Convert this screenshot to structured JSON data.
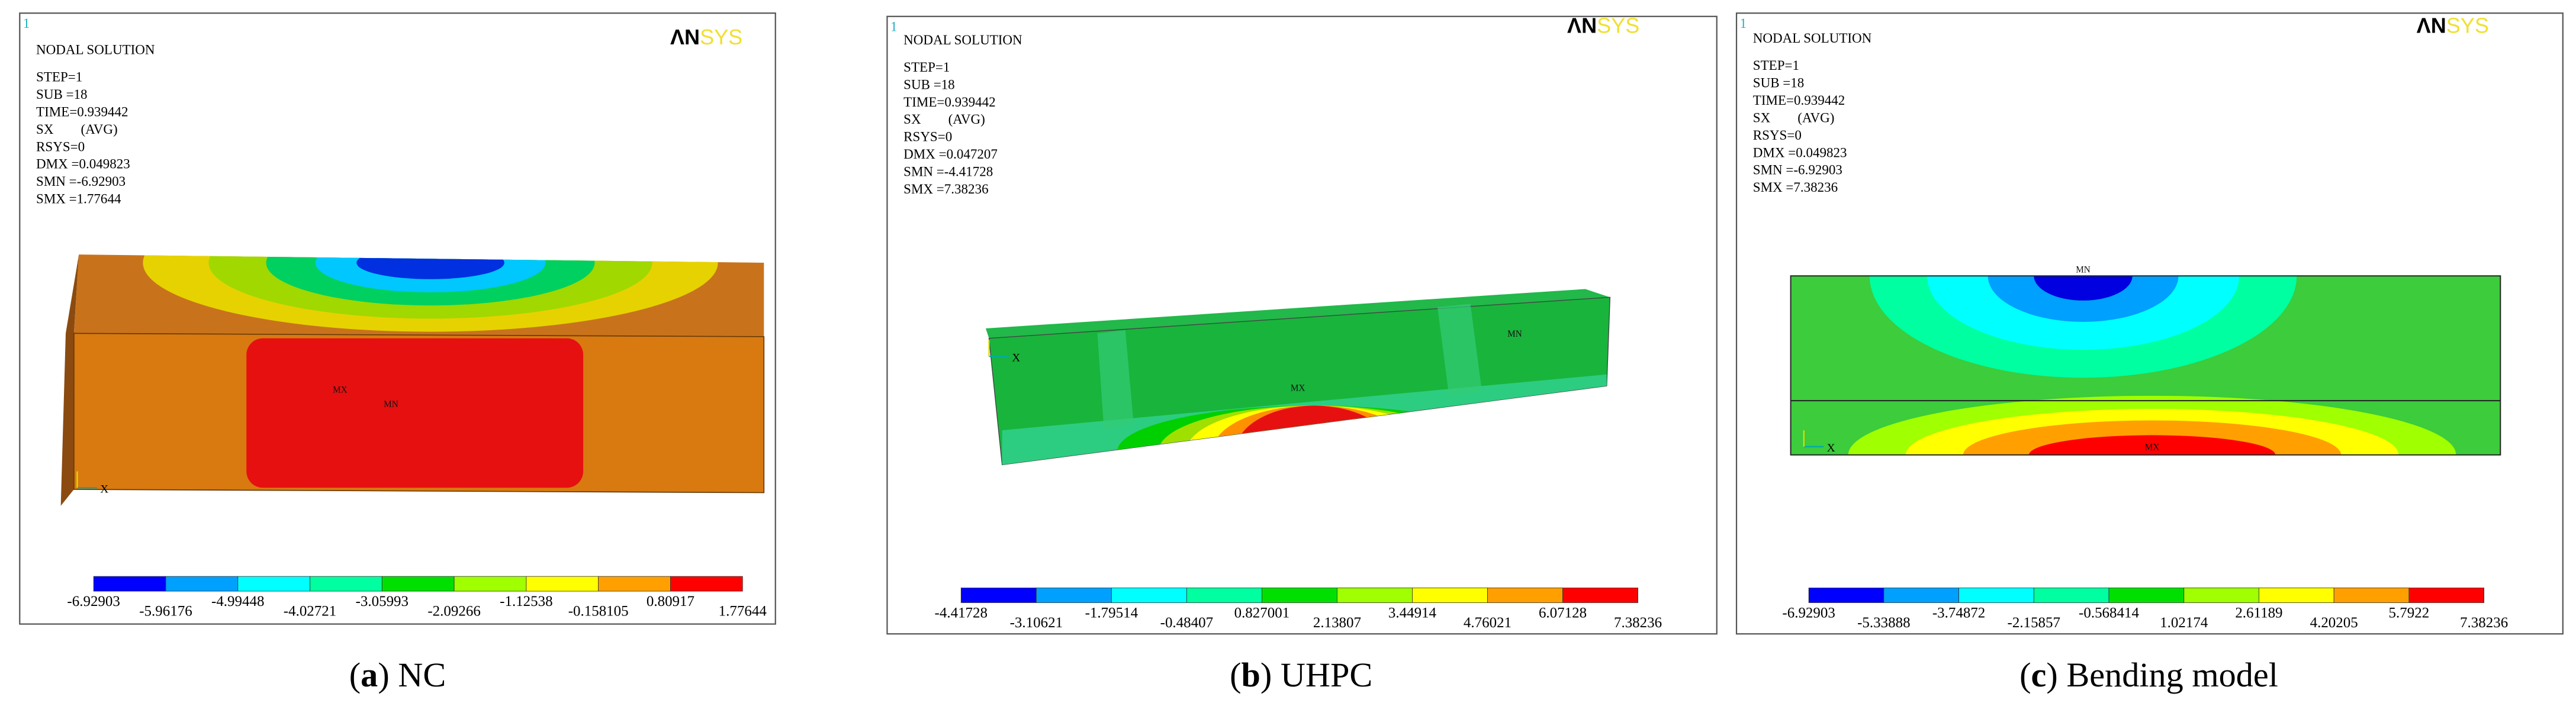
{
  "panels": [
    {
      "window": "1",
      "info": [
        "NODAL SOLUTION",
        "STEP=1",
        "SUB =18",
        "TIME=0.939442",
        "SX        (AVG)",
        "RSYS=0",
        "DMX =0.049823",
        "SMN =-6.92903",
        "SMX =1.77644"
      ],
      "logo": [
        "ΛN",
        "SYS"
      ],
      "legend": [
        "-6.92903",
        "-5.96176",
        "-4.99448",
        "-4.02721",
        "-3.05993",
        "-2.09266",
        "-1.12538",
        "-0.158105",
        "0.80917",
        "1.77644"
      ],
      "markers": [
        "MX",
        "MN"
      ],
      "axis": "X",
      "caption": [
        "(",
        "a",
        ") NC"
      ]
    },
    {
      "window": "1",
      "info": [
        "NODAL SOLUTION",
        "STEP=1",
        "SUB =18",
        "TIME=0.939442",
        "SX        (AVG)",
        "RSYS=0",
        "DMX =0.047207",
        "SMN =-4.41728",
        "SMX =7.38236"
      ],
      "logo": [
        "ΛN",
        "SYS"
      ],
      "legend": [
        "-4.41728",
        "-3.10621",
        "-1.79514",
        "-0.48407",
        "0.827001",
        "2.13807",
        "3.44914",
        "4.76021",
        "6.07128",
        "7.38236"
      ],
      "markers": [
        "MX",
        "MN"
      ],
      "axis": "X",
      "caption": [
        "(",
        "b",
        ") UHPC"
      ]
    },
    {
      "window": "1",
      "info": [
        "NODAL SOLUTION",
        "STEP=1",
        "SUB =18",
        "TIME=0.939442",
        "SX        (AVG)",
        "RSYS=0",
        "DMX =0.049823",
        "SMN =-6.92903",
        "SMX =7.38236"
      ],
      "logo": [
        "ΛN",
        "SYS"
      ],
      "legend": [
        "-6.92903",
        "-5.33888",
        "-3.74872",
        "-2.15857",
        "-0.568414",
        "1.02174",
        "2.61189",
        "4.20205",
        "5.7922",
        "7.38236"
      ],
      "markers": [
        "MX",
        "MN"
      ],
      "axis": "X",
      "caption": [
        "(",
        "c",
        ") Bending model"
      ]
    }
  ]
}
